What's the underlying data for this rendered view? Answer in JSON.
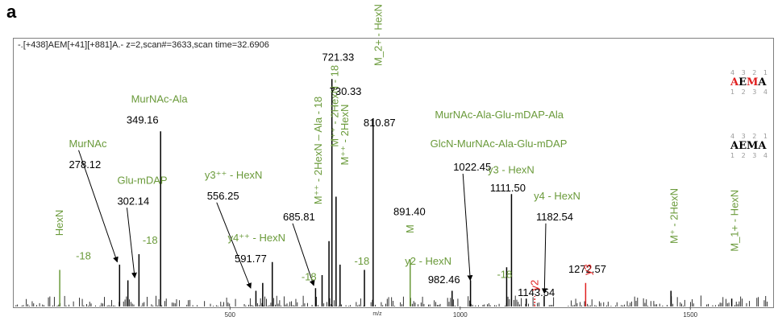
{
  "panel_label": "a",
  "header": "-.[+438]AEM[+41][+881]A.- z=2,scan#=3633,scan time=32.6906",
  "colors": {
    "green": "#6a9a3a",
    "red": "#e02020",
    "peak": "#000000",
    "axis": "#555555"
  },
  "legend": {
    "top": {
      "nums_top": "4 3 2 1",
      "sequence": "AEMA",
      "nums_bottom": "1 2 3 4",
      "red_letters": [
        0,
        2
      ]
    },
    "bottom": {
      "nums_top": "4 3 2 1",
      "sequence": "AEMA",
      "nums_bottom": "1 2 3 4"
    }
  },
  "chart_data": {
    "type": "bar",
    "title": "",
    "xlabel": "m/z",
    "ylabel": "",
    "xlim": [
      30,
      1680
    ],
    "ylim": [
      0,
      100
    ],
    "x_ticks": [
      500,
      1000,
      1500
    ],
    "x_tick_labels": [
      "500",
      "1000",
      "1500"
    ],
    "grid": false,
    "major_peaks": [
      {
        "mz": 130,
        "intensity": 14,
        "color": "green"
      },
      {
        "mz": 260,
        "intensity": 16
      },
      {
        "mz": 278.12,
        "intensity": 10
      },
      {
        "mz": 302.14,
        "intensity": 20
      },
      {
        "mz": 349.16,
        "intensity": 67
      },
      {
        "mz": 556.25,
        "intensity": 6
      },
      {
        "mz": 571,
        "intensity": 9
      },
      {
        "mz": 591.77,
        "intensity": 17
      },
      {
        "mz": 685.81,
        "intensity": 7
      },
      {
        "mz": 700,
        "intensity": 12
      },
      {
        "mz": 715,
        "intensity": 25
      },
      {
        "mz": 721.33,
        "intensity": 87
      },
      {
        "mz": 730.33,
        "intensity": 42
      },
      {
        "mz": 739,
        "intensity": 16
      },
      {
        "mz": 792,
        "intensity": 14
      },
      {
        "mz": 810.87,
        "intensity": 72
      },
      {
        "mz": 891.4,
        "intensity": 18,
        "color": "green"
      },
      {
        "mz": 982.46,
        "intensity": 6
      },
      {
        "mz": 1022.45,
        "intensity": 10
      },
      {
        "mz": 1101,
        "intensity": 15
      },
      {
        "mz": 1111.5,
        "intensity": 43
      },
      {
        "mz": 1143.54,
        "intensity": 3
      },
      {
        "mz": 1162,
        "intensity": 4,
        "color": "red",
        "dashed": true
      },
      {
        "mz": 1182.54,
        "intensity": 4
      },
      {
        "mz": 1272.57,
        "intensity": 9,
        "color": "red"
      },
      {
        "mz": 1458,
        "intensity": 6
      },
      {
        "mz": 1590,
        "intensity": 3
      }
    ],
    "annotations": [
      {
        "text": "HexN",
        "mz": 130,
        "intensity": 27,
        "color": "green",
        "rotate": true
      },
      {
        "text": "MurNAc",
        "mz": 150,
        "intensity": 61,
        "color": "green",
        "arrow_to": {
          "mz": 255,
          "intensity": 17
        }
      },
      {
        "text": "278.12",
        "mz": 150,
        "intensity": 53,
        "color": "black"
      },
      {
        "text": "Glu-mDAP",
        "mz": 255,
        "intensity": 47,
        "color": "green"
      },
      {
        "text": "302.14",
        "mz": 255,
        "intensity": 39,
        "color": "black",
        "arrow_to": {
          "mz": 293,
          "intensity": 11
        }
      },
      {
        "text": "-18",
        "mz": 165,
        "intensity": 18,
        "color": "green"
      },
      {
        "text": "-18",
        "mz": 310,
        "intensity": 24,
        "color": "green"
      },
      {
        "text": "MurNAc-Ala",
        "mz": 285,
        "intensity": 78,
        "color": "green"
      },
      {
        "text": "349.16",
        "mz": 275,
        "intensity": 70,
        "color": "black"
      },
      {
        "text": "y3⁺⁺ - HexN",
        "mz": 445,
        "intensity": 49,
        "color": "green"
      },
      {
        "text": "556.25",
        "mz": 450,
        "intensity": 41,
        "color": "black",
        "arrow_to": {
          "mz": 545,
          "intensity": 7
        }
      },
      {
        "text": "y4⁺⁺ - HexN",
        "mz": 495,
        "intensity": 25,
        "color": "green"
      },
      {
        "text": "591.77",
        "mz": 510,
        "intensity": 17,
        "color": "black"
      },
      {
        "text": "M⁺⁺ - 2HexN – Ala - 18",
        "mz": 692,
        "intensity": 39,
        "color": "green",
        "rotate": true
      },
      {
        "text": "685.81",
        "mz": 615,
        "intensity": 33,
        "color": "black",
        "arrow_to": {
          "mz": 682,
          "intensity": 8
        }
      },
      {
        "text": "-18",
        "mz": 655,
        "intensity": 10,
        "color": "green"
      },
      {
        "text": "M⁺⁺ - 2HexN - 18",
        "mz": 728,
        "intensity": 61,
        "color": "green",
        "rotate": true
      },
      {
        "text": "721.33",
        "mz": 700,
        "intensity": 94,
        "color": "black"
      },
      {
        "text": "730.33",
        "mz": 716,
        "intensity": 81,
        "color": "black"
      },
      {
        "text": "M⁺⁺ - 2HexN",
        "mz": 750,
        "intensity": 54,
        "color": "green",
        "rotate": true
      },
      {
        "text": "M_2+ - HexN",
        "mz": 823,
        "intensity": 92,
        "color": "green",
        "rotate": true
      },
      {
        "text": "810.87",
        "mz": 790,
        "intensity": 69,
        "color": "black"
      },
      {
        "text": "-18",
        "mz": 770,
        "intensity": 16,
        "color": "green"
      },
      {
        "text": "891.40",
        "mz": 855,
        "intensity": 35,
        "color": "black"
      },
      {
        "text": "M",
        "mz": 891.4,
        "intensity": 28,
        "color": "green",
        "rotate": true
      },
      {
        "text": "y2 - HexN",
        "mz": 880,
        "intensity": 16,
        "color": "green"
      },
      {
        "text": "982.46",
        "mz": 930,
        "intensity": 9,
        "color": "black"
      },
      {
        "text": "MurNAc-Ala-Glu-mDAP-Ala",
        "mz": 945,
        "intensity": 72,
        "color": "green"
      },
      {
        "text": "GlcN-MurNAc-Ala-Glu-mDAP",
        "mz": 935,
        "intensity": 61,
        "color": "green"
      },
      {
        "text": "1022.45",
        "mz": 985,
        "intensity": 52,
        "color": "black",
        "arrow_to": {
          "mz": 1022,
          "intensity": 10
        }
      },
      {
        "text": "y3 - HexN",
        "mz": 1060,
        "intensity": 51,
        "color": "green"
      },
      {
        "text": "1111.50",
        "mz": 1065,
        "intensity": 44,
        "color": "black"
      },
      {
        "text": "-18",
        "mz": 1080,
        "intensity": 11,
        "color": "green"
      },
      {
        "text": "y4 - HexN",
        "mz": 1160,
        "intensity": 41,
        "color": "green"
      },
      {
        "text": "1182.54",
        "mz": 1165,
        "intensity": 33,
        "color": "black",
        "arrow_to": {
          "mz": 1183,
          "intensity": 5
        }
      },
      {
        "text": "1272.57",
        "mz": 1235,
        "intensity": 13,
        "color": "black"
      },
      {
        "text": "1143.54",
        "mz": 1125,
        "intensity": 4,
        "color": "black"
      },
      {
        "text": "y2",
        "mz": 1162,
        "intensity": 6,
        "color": "red",
        "rotate": true
      },
      {
        "text": "y3",
        "mz": 1278,
        "intensity": 12,
        "color": "red",
        "rotate": true
      },
      {
        "text": "M⁺ - 2HexN",
        "mz": 1465,
        "intensity": 24,
        "color": "green",
        "rotate": true
      },
      {
        "text": "M_1+ - HexN",
        "mz": 1597,
        "intensity": 21,
        "color": "green",
        "rotate": true
      }
    ]
  }
}
